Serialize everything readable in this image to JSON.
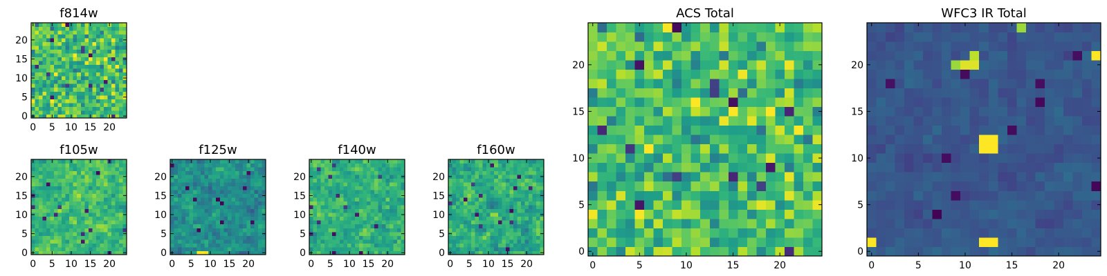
{
  "chart_data": [
    {
      "type": "heatmap",
      "title": "f814w",
      "xlabel": "",
      "ylabel": "",
      "grid_size": 25,
      "xlim": [
        -0.5,
        24.5
      ],
      "ylim": [
        -0.5,
        24.5
      ],
      "xticks": [
        0,
        5,
        10,
        15,
        20
      ],
      "yticks": [
        0,
        5,
        10,
        15,
        20
      ],
      "colormap": "viridis",
      "grid": false,
      "seed": 814,
      "mean": 0.7,
      "spread": 0.26,
      "smooth": 0,
      "hot_spots": []
    },
    {
      "type": "heatmap",
      "title": "f105w",
      "xlabel": "",
      "ylabel": "",
      "grid_size": 25,
      "xlim": [
        -0.5,
        24.5
      ],
      "ylim": [
        -0.5,
        24.5
      ],
      "xticks": [
        0,
        5,
        10,
        15,
        20
      ],
      "yticks": [
        0,
        5,
        10,
        15,
        20
      ],
      "colormap": "viridis",
      "grid": false,
      "seed": 105,
      "mean": 0.68,
      "spread": 0.24,
      "smooth": 1,
      "hot_spots": []
    },
    {
      "type": "heatmap",
      "title": "f125w",
      "xlabel": "",
      "ylabel": "",
      "grid_size": 25,
      "xlim": [
        -0.5,
        24.5
      ],
      "ylim": [
        -0.5,
        24.5
      ],
      "xticks": [
        0,
        5,
        10,
        15,
        20
      ],
      "yticks": [
        0,
        5,
        10,
        15,
        20
      ],
      "colormap": "viridis",
      "grid": false,
      "seed": 125,
      "mean": 0.5,
      "spread": 0.24,
      "smooth": 1,
      "hot_spots": [
        {
          "x": 7,
          "y": 0,
          "value": 1.0
        },
        {
          "x": 8,
          "y": 0,
          "value": 1.0
        },
        {
          "x": 9,
          "y": 0,
          "value": 0.98
        }
      ]
    },
    {
      "type": "heatmap",
      "title": "f140w",
      "xlabel": "",
      "ylabel": "",
      "grid_size": 25,
      "xlim": [
        -0.5,
        24.5
      ],
      "ylim": [
        -0.5,
        24.5
      ],
      "xticks": [
        0,
        5,
        10,
        15,
        20
      ],
      "yticks": [
        0,
        5,
        10,
        15,
        20
      ],
      "colormap": "viridis",
      "grid": false,
      "seed": 140,
      "mean": 0.64,
      "spread": 0.24,
      "smooth": 1,
      "hot_spots": []
    },
    {
      "type": "heatmap",
      "title": "f160w",
      "xlabel": "",
      "ylabel": "",
      "grid_size": 25,
      "xlim": [
        -0.5,
        24.5
      ],
      "ylim": [
        -0.5,
        24.5
      ],
      "xticks": [
        0,
        5,
        10,
        15,
        20
      ],
      "yticks": [
        0,
        5,
        10,
        15,
        20
      ],
      "colormap": "viridis",
      "grid": false,
      "seed": 160,
      "mean": 0.62,
      "spread": 0.26,
      "smooth": 1,
      "hot_spots": []
    },
    {
      "type": "heatmap",
      "title": "ACS Total",
      "xlabel": "",
      "ylabel": "",
      "grid_size": 25,
      "xlim": [
        -0.5,
        24.5
      ],
      "ylim": [
        -0.5,
        24.5
      ],
      "xticks": [
        0,
        5,
        10,
        15,
        20
      ],
      "yticks": [
        0,
        5,
        10,
        15,
        20
      ],
      "colormap": "viridis",
      "grid": false,
      "seed": 814,
      "mean": 0.7,
      "spread": 0.26,
      "smooth": 0,
      "hot_spots": []
    },
    {
      "type": "heatmap",
      "title": "WFC3 IR Total",
      "xlabel": "",
      "ylabel": "",
      "grid_size": 25,
      "xlim": [
        -0.5,
        24.5
      ],
      "ylim": [
        -0.5,
        24.5
      ],
      "xticks": [
        0,
        5,
        10,
        15,
        20
      ],
      "yticks": [
        0,
        5,
        10,
        15,
        20
      ],
      "colormap": "viridis",
      "grid": false,
      "seed": 999,
      "mean": 0.27,
      "spread": 0.1,
      "smooth": 1,
      "hot_spots": [
        {
          "x": 0,
          "y": 1,
          "value": 1.0
        },
        {
          "x": 12,
          "y": 1,
          "value": 1.0
        },
        {
          "x": 13,
          "y": 1,
          "value": 1.0
        },
        {
          "x": 12,
          "y": 11,
          "value": 1.0
        },
        {
          "x": 13,
          "y": 11,
          "value": 1.0
        },
        {
          "x": 12,
          "y": 12,
          "value": 1.0
        },
        {
          "x": 13,
          "y": 12,
          "value": 1.0
        },
        {
          "x": 10,
          "y": 20,
          "value": 0.95
        },
        {
          "x": 11,
          "y": 20,
          "value": 0.95
        },
        {
          "x": 11,
          "y": 21,
          "value": 0.9
        },
        {
          "x": 9,
          "y": 20,
          "value": 0.85
        },
        {
          "x": 24,
          "y": 21,
          "value": 1.0
        },
        {
          "x": 16,
          "y": 24,
          "value": 0.85
        }
      ]
    }
  ]
}
